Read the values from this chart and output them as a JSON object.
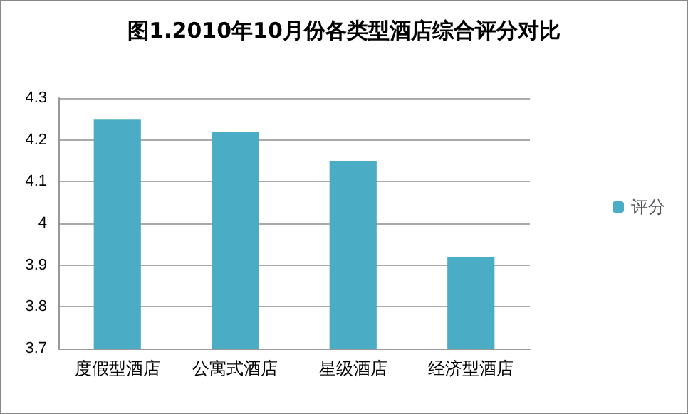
{
  "chart_data": {
    "type": "bar",
    "title": "图1.2010年10月份各类型酒店综合评分对比",
    "categories": [
      "度假型酒店",
      "公寓式酒店",
      "星级酒店",
      "经济型酒店"
    ],
    "series": [
      {
        "name": "评分",
        "color": "#4bacc6",
        "values": [
          4.25,
          4.22,
          4.15,
          3.92
        ]
      }
    ],
    "ylim": [
      3.7,
      4.3
    ],
    "yticks": [
      3.7,
      3.8,
      3.9,
      4,
      4.1,
      4.2,
      4.3
    ],
    "grid": "y",
    "legend": "right"
  }
}
